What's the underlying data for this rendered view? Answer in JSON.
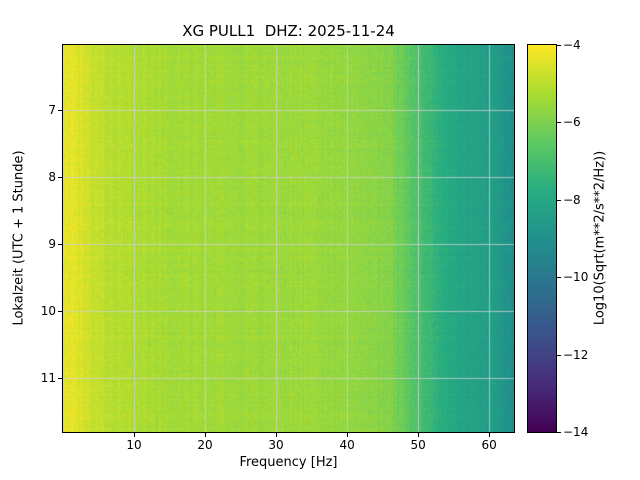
{
  "chart_data": {
    "type": "heatmap",
    "title": "XG PULL1  DHZ: 2025-11-24",
    "xlabel": "Frequency [Hz]",
    "ylabel": "Lokalzeit (UTC + 1 Stunde)",
    "colorbar_label": "Log10(Sqrt(m**2/s**2/Hz))",
    "x_range_hz": [
      0,
      63.5
    ],
    "y_range_hours": [
      6.03,
      11.81
    ],
    "x_ticks": [
      10,
      20,
      30,
      40,
      50,
      60
    ],
    "x_tick_labels": [
      "10",
      "20",
      "30",
      "40",
      "50",
      "60"
    ],
    "y_ticks": [
      7,
      8,
      9,
      10,
      11
    ],
    "y_tick_labels": [
      "7",
      "8",
      "9",
      "10",
      "11"
    ],
    "value_range": [
      -14,
      -4
    ],
    "colorbar_tick_values": [
      -4,
      -6,
      -8,
      -10,
      -12,
      -14
    ],
    "colorbar_tick_labels": [
      "−4",
      "−6",
      "−8",
      "−10",
      "−12",
      "−14"
    ],
    "colormap": "viridis",
    "colormap_stops": [
      [
        0.0,
        "#440154"
      ],
      [
        0.125,
        "#472d7b"
      ],
      [
        0.25,
        "#3b528b"
      ],
      [
        0.375,
        "#2c728e"
      ],
      [
        0.5,
        "#21918c"
      ],
      [
        0.625,
        "#27ad81"
      ],
      [
        0.75,
        "#5ec962"
      ],
      [
        0.875,
        "#aadc32"
      ],
      [
        1.0,
        "#fde725"
      ]
    ],
    "spectrum_profile": {
      "freq_hz": [
        0,
        1,
        2,
        4,
        6,
        10,
        15,
        25,
        35,
        42,
        46,
        49,
        51,
        54,
        58,
        61,
        62.5,
        63.5
      ],
      "log10_amp": [
        -4.3,
        -4.35,
        -4.5,
        -4.8,
        -5.0,
        -5.2,
        -5.35,
        -5.45,
        -5.5,
        -5.65,
        -5.9,
        -6.6,
        -7.2,
        -7.9,
        -8.3,
        -8.5,
        -8.9,
        -9.1
      ]
    },
    "noise_amplitude": 0.25,
    "grid": true,
    "grid_color": "rgba(210,210,210,0.85)"
  }
}
